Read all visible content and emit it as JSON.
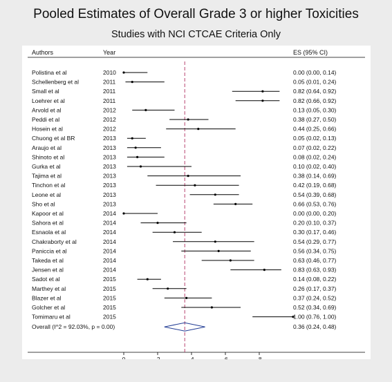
{
  "chart_data": {
    "type": "forest",
    "title": "Pooled Estimates of Overall Grade 3 or higher Toxicities",
    "subtitle": "Studies with NCI CTCAE Criteria Only",
    "columns": {
      "authors": "Authors",
      "year": "Year",
      "es": "ES (95% CI)"
    },
    "xlim": [
      0,
      1
    ],
    "xticks": [
      0,
      0.2,
      0.4,
      0.6,
      0.8
    ],
    "xtick_labels": [
      "0",
      ".2",
      ".4",
      ".6",
      ".8"
    ],
    "reference_line": 0.36,
    "studies": [
      {
        "author": "Polistina et al",
        "year": "2010",
        "es": 0.0,
        "lo": 0.0,
        "hi": 0.14,
        "ci_text": "0.00 (0.00, 0.14)"
      },
      {
        "author": "Schellenberg et al",
        "year": "2011",
        "es": 0.05,
        "lo": 0.01,
        "hi": 0.24,
        "ci_text": "0.05 (0.01, 0.24)"
      },
      {
        "author": "Small et al",
        "year": "2011",
        "es": 0.82,
        "lo": 0.64,
        "hi": 0.92,
        "ci_text": "0.82 (0.64, 0.92)"
      },
      {
        "author": "Loehrer et al",
        "year": "2011",
        "es": 0.82,
        "lo": 0.66,
        "hi": 0.92,
        "ci_text": "0.82 (0.66, 0.92)"
      },
      {
        "author": "Arvold et al",
        "year": "2012",
        "es": 0.13,
        "lo": 0.05,
        "hi": 0.3,
        "ci_text": "0.13 (0.05, 0.30)"
      },
      {
        "author": "Peddi et al",
        "year": "2012",
        "es": 0.38,
        "lo": 0.27,
        "hi": 0.5,
        "ci_text": "0.38 (0.27, 0.50)"
      },
      {
        "author": "Hosein et al",
        "year": "2012",
        "es": 0.44,
        "lo": 0.25,
        "hi": 0.66,
        "ci_text": "0.44 (0.25, 0.66)"
      },
      {
        "author": "Chuong et al BR",
        "year": "2013",
        "es": 0.05,
        "lo": 0.02,
        "hi": 0.13,
        "ci_text": "0.05 (0.02, 0.13)"
      },
      {
        "author": "Araujo et al",
        "year": "2013",
        "es": 0.07,
        "lo": 0.02,
        "hi": 0.22,
        "ci_text": "0.07 (0.02, 0.22)"
      },
      {
        "author": "Shinoto et al",
        "year": "2013",
        "es": 0.08,
        "lo": 0.02,
        "hi": 0.24,
        "ci_text": "0.08 (0.02, 0.24)"
      },
      {
        "author": "Gurka et al",
        "year": "2013",
        "es": 0.1,
        "lo": 0.02,
        "hi": 0.4,
        "ci_text": "0.10 (0.02, 0.40)"
      },
      {
        "author": "Tajima et al",
        "year": "2013",
        "es": 0.38,
        "lo": 0.14,
        "hi": 0.69,
        "ci_text": "0.38 (0.14, 0.69)"
      },
      {
        "author": "Tinchon et al",
        "year": "2013",
        "es": 0.42,
        "lo": 0.19,
        "hi": 0.68,
        "ci_text": "0.42 (0.19, 0.68)"
      },
      {
        "author": "Leone et al",
        "year": "2013",
        "es": 0.54,
        "lo": 0.39,
        "hi": 0.68,
        "ci_text": "0.54 (0.39, 0.68)"
      },
      {
        "author": "Sho et al",
        "year": "2013",
        "es": 0.66,
        "lo": 0.53,
        "hi": 0.76,
        "ci_text": "0.66 (0.53, 0.76)"
      },
      {
        "author": "Kapoor et al",
        "year": "2014",
        "es": 0.0,
        "lo": 0.0,
        "hi": 0.2,
        "ci_text": "0.00 (0.00, 0.20)"
      },
      {
        "author": "Sahora et al",
        "year": "2014",
        "es": 0.2,
        "lo": 0.1,
        "hi": 0.37,
        "ci_text": "0.20 (0.10, 0.37)"
      },
      {
        "author": "Esnaola et al",
        "year": "2014",
        "es": 0.3,
        "lo": 0.17,
        "hi": 0.46,
        "ci_text": "0.30 (0.17, 0.46)"
      },
      {
        "author": "Chakraborty et al",
        "year": "2014",
        "es": 0.54,
        "lo": 0.29,
        "hi": 0.77,
        "ci_text": "0.54 (0.29, 0.77)"
      },
      {
        "author": "Paniccia et al",
        "year": "2014",
        "es": 0.56,
        "lo": 0.34,
        "hi": 0.75,
        "ci_text": "0.56 (0.34, 0.75)"
      },
      {
        "author": "Takeda et al",
        "year": "2014",
        "es": 0.63,
        "lo": 0.46,
        "hi": 0.77,
        "ci_text": "0.63 (0.46, 0.77)"
      },
      {
        "author": "Jensen et al",
        "year": "2014",
        "es": 0.83,
        "lo": 0.63,
        "hi": 0.93,
        "ci_text": "0.83 (0.63, 0.93)"
      },
      {
        "author": "Sadot et al",
        "year": "2015",
        "es": 0.14,
        "lo": 0.08,
        "hi": 0.22,
        "ci_text": "0.14 (0.08, 0.22)"
      },
      {
        "author": "Marthey et al",
        "year": "2015",
        "es": 0.26,
        "lo": 0.17,
        "hi": 0.37,
        "ci_text": "0.26 (0.17, 0.37)"
      },
      {
        "author": "Blazer et al",
        "year": "2015",
        "es": 0.37,
        "lo": 0.24,
        "hi": 0.52,
        "ci_text": "0.37 (0.24, 0.52)"
      },
      {
        "author": "Golcher et al",
        "year": "2015",
        "es": 0.52,
        "lo": 0.34,
        "hi": 0.69,
        "ci_text": "0.52 (0.34, 0.69)"
      },
      {
        "author": "Tomimaru et al",
        "year": "2015",
        "es": 1.0,
        "lo": 0.76,
        "hi": 1.0,
        "ci_text": "1.00 (0.76, 1.00)"
      }
    ],
    "overall": {
      "label": "Overall  (I^2 = 92.03%, p = 0.00)",
      "es": 0.36,
      "lo": 0.24,
      "hi": 0.48,
      "ci_text": "0.36 (0.24, 0.48)"
    },
    "colors": {
      "reference_line": "#b03060",
      "overall_diamond": "#1f3a93",
      "marks": "#000000"
    }
  }
}
